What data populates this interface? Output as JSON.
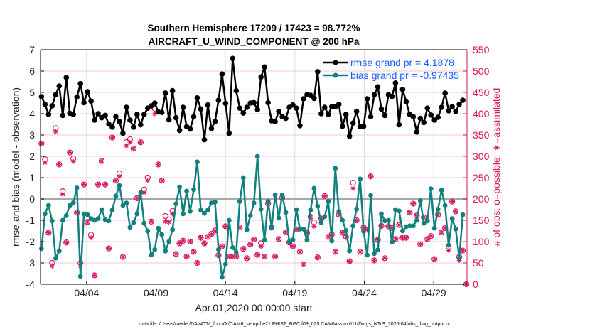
{
  "chart_data": {
    "type": "line",
    "title": [
      "Southern Hemisphere 17209 / 17423 = 98.772%",
      "AIRCRAFT_U_WIND_COMPONENT @ 200 hPa"
    ],
    "xlabel": "Apr.01,2020 00:00:00 start",
    "ylabel": "rmse and bias (model - observation)",
    "ylabel_right": "# of obs: o=possible; ∗=assimilated",
    "footnote": "data file: /Users/raeder/DAI/ATM_forcXX/CAM6_setup/f.e21.FHIST_BGC.f09_025.CAM6assim.011/Diags_NTrS_2020-04/obs_diag_output.nc",
    "xlim_days": [
      -0.32,
      30.4
    ],
    "ylim": [
      -4,
      7
    ],
    "ylim_right": [
      0,
      550
    ],
    "grid": true,
    "legend_position": "top-right",
    "x_ticks": [
      {
        "day": 3,
        "label": "04/04"
      },
      {
        "day": 8,
        "label": "04/09"
      },
      {
        "day": 13,
        "label": "04/14"
      },
      {
        "day": 18,
        "label": "04/19"
      },
      {
        "day": 23,
        "label": "04/24"
      },
      {
        "day": 28,
        "label": "04/29"
      }
    ],
    "y_ticks": [
      "-4",
      "-3",
      "-2",
      "-1",
      "0",
      "1",
      "2",
      "3",
      "4",
      "5",
      "6",
      "7"
    ],
    "y_ticks_right": [
      "0",
      "50",
      "100",
      "150",
      "200",
      "250",
      "300",
      "350",
      "400",
      "450",
      "500",
      "550"
    ],
    "x_start_day": -0.25,
    "x_step_day": 0.255,
    "colors": {
      "rmse": "#000000",
      "bias": "#138080",
      "obs": "#d6165f",
      "legend_text": "#1a5cff",
      "grid": "#f3c6d6",
      "zero": "#a8a8a8"
    },
    "series": [
      {
        "name": "rmse grand pr = 4.1878",
        "key": "rmse",
        "values": [
          4.8,
          4.44,
          3.97,
          4.37,
          4.89,
          5.3,
          3.92,
          5.7,
          4.02,
          3.97,
          4.78,
          5.41,
          4.52,
          5.03,
          4.59,
          3.7,
          4.0,
          3.81,
          3.92,
          3.52,
          3.37,
          3.86,
          3.63,
          3.08,
          4.3,
          3.7,
          3.37,
          3.97,
          3.48,
          3.97,
          4.26,
          4.37,
          4.5,
          4.08,
          4.06,
          4.97,
          3.72,
          5.08,
          3.81,
          3.22,
          4.3,
          3.39,
          3.28,
          3.86,
          4.74,
          4.22,
          2.78,
          4.41,
          3.3,
          3.63,
          4.63,
          5.86,
          4.48,
          3.08,
          6.59,
          5.08,
          4.26,
          4.03,
          4.3,
          4.5,
          4.52,
          4.19,
          5.72,
          6.19,
          4.52,
          3.67,
          3.63,
          4.11,
          3.86,
          3.78,
          4.3,
          4.41,
          4.26,
          3.44,
          4.7,
          4.89,
          4.86,
          4.72,
          5.97,
          4.0,
          4.3,
          3.97,
          4.33,
          4.33,
          4.44,
          3.41,
          3.97,
          2.94,
          3.56,
          4.11,
          3.39,
          3.41,
          4.7,
          3.86,
          4.89,
          5.26,
          4.22,
          3.92,
          4.89,
          4.81,
          5.44,
          3.48,
          5.14,
          4.56,
          3.97,
          3.86,
          3.14,
          3.78,
          3.59,
          4.26,
          3.94,
          3.7,
          3.83,
          4.3,
          4.97,
          4.14,
          4.33,
          4.11,
          4.44,
          4.63,
          null
        ]
      },
      {
        "name": "bias grand pr = -0.97435",
        "key": "bias",
        "values": [
          -2.33,
          -0.7,
          -0.3,
          -1.03,
          -2.78,
          -2.44,
          -1.0,
          -0.78,
          -0.3,
          -0.17,
          0.52,
          -3.63,
          -0.7,
          -0.74,
          -0.92,
          -1.0,
          -0.92,
          -0.5,
          -0.97,
          -1.03,
          -0.52,
          0.14,
          0.63,
          -0.3,
          -0.19,
          -1.33,
          -1.11,
          -0.7,
          0.3,
          -1.14,
          -1.5,
          -2.63,
          -2.37,
          -1.37,
          -1.67,
          -2.44,
          -2.0,
          -1.44,
          -0.22,
          0.56,
          -0.7,
          0.37,
          -0.58,
          0.44,
          1.74,
          -0.52,
          -0.67,
          -0.52,
          -0.19,
          -0.14,
          -2.37,
          -3.67,
          -3.06,
          -1.0,
          -2.28,
          -2.5,
          -0.11,
          1.0,
          -1.44,
          -0.78,
          -0.19,
          2.0,
          -0.48,
          -1.92,
          -0.11,
          -1.33,
          0.19,
          -0.89,
          0.19,
          -0.63,
          -2.0,
          -1.92,
          -0.5,
          -1.41,
          -1.41,
          -1.92,
          -0.52,
          0.5,
          -0.33,
          -1.11,
          -0.83,
          -0.11,
          -1.97,
          1.44,
          -0.59,
          -1.0,
          -1.48,
          -2.44,
          -1.26,
          -0.48,
          0.94,
          -1.52,
          -2.63,
          0.17,
          -2.56,
          -2.39,
          -0.7,
          -1.03,
          -1.0,
          -2.03,
          -0.5,
          -0.56,
          -1.5,
          -1.3,
          -1.26,
          -1.26,
          -1.0,
          -0.08,
          -1.14,
          -1.03,
          0.48,
          -1.37,
          -0.48,
          0.41,
          -0.3,
          -2.17,
          -0.92,
          -1.41,
          -2.78,
          -0.74,
          null
        ]
      }
    ],
    "obs_assimilated": [
      330,
      285,
      121,
      43,
      358,
      281,
      211,
      98,
      309,
      288,
      168,
      43,
      234,
      146,
      109,
      21,
      234,
      289,
      234,
      84,
      344,
      243,
      253,
      64,
      325,
      333,
      318,
      202,
      333,
      215,
      243,
      147,
      400,
      281,
      243,
      147,
      146,
      165,
      71,
      96,
      102,
      65,
      100,
      76,
      50,
      109,
      96,
      111,
      117,
      126,
      68,
      89,
      136,
      65,
      65,
      65,
      133,
      83,
      61,
      93,
      105,
      69,
      89,
      65,
      189,
      133,
      65,
      106,
      203,
      122,
      98,
      89,
      129,
      76,
      47,
      121,
      158,
      136,
      63,
      154,
      207,
      111,
      117,
      76,
      163,
      121,
      111,
      54,
      225,
      150,
      76,
      133,
      128,
      253,
      56,
      104,
      137,
      61,
      136,
      132,
      106,
      139,
      109,
      109,
      168,
      189,
      161,
      94,
      157,
      106,
      113,
      59,
      163,
      122,
      132,
      79,
      194,
      171,
      56,
      79,
      0
    ],
    "obs_possible": [
      330,
      293,
      121,
      50,
      366,
      281,
      218,
      98,
      309,
      295,
      168,
      50,
      234,
      146,
      116,
      21,
      234,
      289,
      234,
      84,
      344,
      243,
      260,
      64,
      333,
      340,
      318,
      202,
      333,
      222,
      250,
      147,
      412,
      281,
      243,
      160,
      152,
      172,
      71,
      96,
      102,
      65,
      100,
      76,
      50,
      109,
      96,
      111,
      118,
      126,
      68,
      89,
      136,
      65,
      65,
      65,
      133,
      83,
      61,
      93,
      105,
      69,
      96,
      65,
      189,
      133,
      65,
      106,
      203,
      122,
      98,
      89,
      129,
      76,
      47,
      121,
      158,
      145,
      63,
      154,
      207,
      111,
      117,
      76,
      163,
      121,
      111,
      54,
      238,
      150,
      76,
      133,
      128,
      253,
      56,
      104,
      137,
      61,
      136,
      132,
      106,
      139,
      109,
      109,
      168,
      189,
      161,
      94,
      157,
      106,
      113,
      59,
      163,
      122,
      132,
      88,
      194,
      171,
      64,
      79,
      0
    ]
  }
}
